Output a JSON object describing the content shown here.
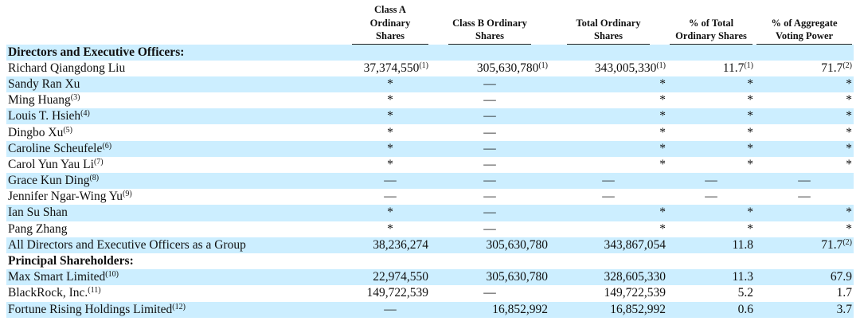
{
  "headers": [
    "Class A Ordinary Shares",
    "Class B Ordinary Shares",
    "Total Ordinary Shares",
    "% of Total Ordinary Shares",
    "% of Aggregate Voting Power"
  ],
  "rows": [
    {
      "type": "section",
      "label": "Directors and Executive Officers:"
    },
    {
      "label": "Richard Qiangdong Liu",
      "cells": [
        [
          "37,374,550",
          "(1)"
        ],
        [
          "305,630,780",
          "(1)"
        ],
        [
          "343,005,330",
          "(1)"
        ],
        [
          "11.7",
          "(1)"
        ],
        [
          "71.7",
          "(2)"
        ]
      ]
    },
    {
      "label": "Sandy Ran Xu",
      "cells": [
        [
          "*"
        ],
        [
          "—"
        ],
        [
          "*"
        ],
        [
          "*"
        ],
        [
          "*"
        ]
      ]
    },
    {
      "label": "Ming Huang",
      "note": "(3)",
      "cells": [
        [
          "*"
        ],
        [
          "—"
        ],
        [
          "*"
        ],
        [
          "*"
        ],
        [
          "*"
        ]
      ]
    },
    {
      "label": "Louis T. Hsieh",
      "note": "(4)",
      "cells": [
        [
          "*"
        ],
        [
          "—"
        ],
        [
          "*"
        ],
        [
          "*"
        ],
        [
          "*"
        ]
      ]
    },
    {
      "label": "Dingbo Xu",
      "note": "(5)",
      "cells": [
        [
          "*"
        ],
        [
          "—"
        ],
        [
          "*"
        ],
        [
          "*"
        ],
        [
          "*"
        ]
      ]
    },
    {
      "label": "Caroline Scheufele",
      "note": "(6)",
      "cells": [
        [
          "*"
        ],
        [
          "—"
        ],
        [
          "*"
        ],
        [
          "*"
        ],
        [
          "*"
        ]
      ]
    },
    {
      "label": "Carol Yun Yau Li",
      "note": "(7)",
      "cells": [
        [
          "*"
        ],
        [
          "—"
        ],
        [
          "*"
        ],
        [
          "*"
        ],
        [
          "*"
        ]
      ]
    },
    {
      "label": "Grace Kun Ding",
      "note": "(8)",
      "cells": [
        [
          "—"
        ],
        [
          "—"
        ],
        [
          "—"
        ],
        [
          "—"
        ],
        [
          "—"
        ]
      ]
    },
    {
      "label": "Jennifer Ngar-Wing Yu",
      "note": "(9)",
      "cells": [
        [
          "—"
        ],
        [
          "—"
        ],
        [
          "—"
        ],
        [
          "—"
        ],
        [
          "—"
        ]
      ]
    },
    {
      "label": "Ian Su Shan",
      "cells": [
        [
          "*"
        ],
        [
          "—"
        ],
        [
          "*"
        ],
        [
          "*"
        ],
        [
          "*"
        ]
      ]
    },
    {
      "label": "Pang Zhang",
      "cells": [
        [
          "*"
        ],
        [
          "—"
        ],
        [
          "*"
        ],
        [
          "*"
        ],
        [
          "*"
        ]
      ]
    },
    {
      "label": "All Directors and Executive Officers as a Group",
      "cells": [
        [
          "38,236,274"
        ],
        [
          "305,630,780"
        ],
        [
          "343,867,054"
        ],
        [
          "11.8"
        ],
        [
          "71.7",
          "(2)"
        ]
      ]
    },
    {
      "type": "section",
      "label": "Principal Shareholders:"
    },
    {
      "label": "Max Smart Limited",
      "note": "(10)",
      "cells": [
        [
          "22,974,550"
        ],
        [
          "305,630,780"
        ],
        [
          "328,605,330"
        ],
        [
          "11.3"
        ],
        [
          "67.9"
        ]
      ]
    },
    {
      "label": "BlackRock, Inc.",
      "note": "(11)",
      "cells": [
        [
          "149,722,539"
        ],
        [
          "—"
        ],
        [
          "149,722,539"
        ],
        [
          "5.2"
        ],
        [
          "1.7"
        ]
      ]
    },
    {
      "label": "Fortune Rising Holdings Limited",
      "note": "(12)",
      "cells": [
        [
          "—"
        ],
        [
          "16,852,992"
        ],
        [
          "16,852,992"
        ],
        [
          "0.6"
        ],
        [
          "3.7"
        ]
      ]
    }
  ],
  "colors": {
    "row_shade": "#cceeff"
  }
}
